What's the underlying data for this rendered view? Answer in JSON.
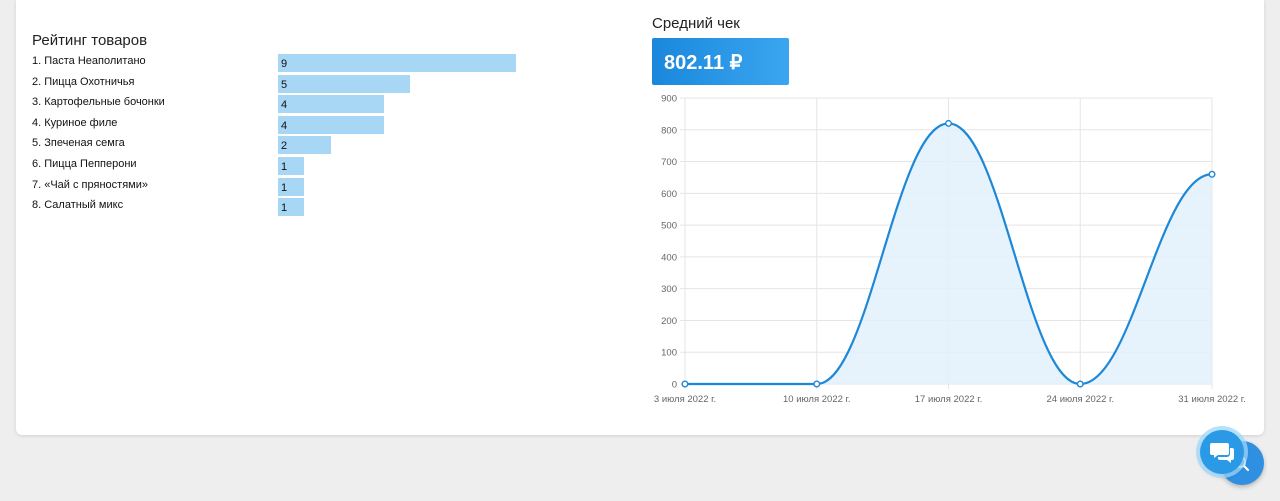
{
  "ranking": {
    "title": "Рейтинг товаров",
    "items": [
      {
        "name": "1. Паста Неаполитано",
        "count": 9
      },
      {
        "name": "2. Пицца Охотничья",
        "count": 5
      },
      {
        "name": "3. Картофельные бочонки",
        "count": 4
      },
      {
        "name": "4. Куриное филе",
        "count": 4
      },
      {
        "name": "5. Зпеченая семга",
        "count": 2
      },
      {
        "name": "6. Пицца Пепперони",
        "count": 1
      },
      {
        "name": "7. «Чай с пряностями»",
        "count": 1
      },
      {
        "name": "8. Салатный микс",
        "count": 1
      }
    ]
  },
  "average_check": {
    "title": "Средний чек",
    "value": "802.11 ₽"
  },
  "chart_data": {
    "type": "area",
    "categories": [
      "3 июля 2022 г.",
      "10 июля 2022 г.",
      "17 июля 2022 г.",
      "24 июля 2022 г.",
      "31 июля 2022 г."
    ],
    "values": [
      0,
      0,
      820,
      0,
      660
    ],
    "ylim": [
      0,
      900
    ],
    "yticks": [
      "0",
      "100",
      "200",
      "300",
      "400",
      "500",
      "600",
      "700",
      "800",
      "900"
    ],
    "grid": true,
    "colors": {
      "line": "#1e88d8",
      "fill": "#e3f1fc",
      "grid": "#e5e5e5"
    }
  },
  "chat_button": {
    "icon": "chat-icon"
  },
  "search_button": {
    "icon": "search-icon"
  },
  "colors": {
    "bar": "#a8d6f5",
    "accent": "#1e88d8"
  }
}
